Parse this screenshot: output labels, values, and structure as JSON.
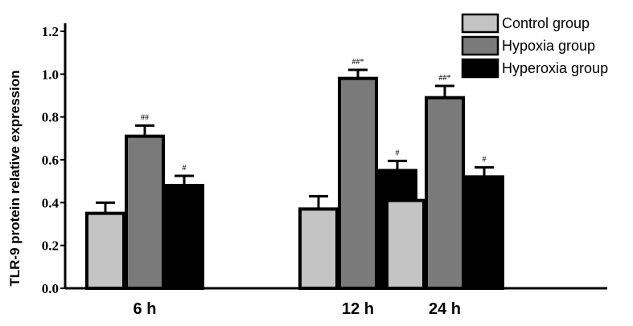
{
  "chart_data": {
    "type": "bar",
    "title": "",
    "xlabel": "",
    "ylabel": "TLR-9 protein relative expression",
    "categories": [
      "6 h",
      "12 h",
      "24 h"
    ],
    "ylim": [
      0,
      1.2
    ],
    "yticks": [
      "0.0",
      "0.2",
      "0.4",
      "0.6",
      "0.8",
      "1.0",
      "1.2"
    ],
    "grid": false,
    "legend_position": "top-right",
    "series": [
      {
        "name": "Control group",
        "color": "#c4c4c4",
        "values": [
          0.35,
          0.37,
          0.41
        ],
        "errors": [
          0.05,
          0.06,
          0.045
        ],
        "annotations": [
          "",
          "",
          ""
        ]
      },
      {
        "name": "Hypoxia group",
        "color": "#7a7a7a",
        "values": [
          0.71,
          0.98,
          0.89
        ],
        "errors": [
          0.05,
          0.04,
          0.055
        ],
        "annotations": [
          "##",
          "##*",
          "##*"
        ]
      },
      {
        "name": "Hyperoxia group",
        "color": "#000000",
        "values": [
          0.48,
          0.55,
          0.52
        ],
        "errors": [
          0.045,
          0.045,
          0.045
        ],
        "annotations": [
          "#",
          "#",
          "#"
        ]
      }
    ]
  }
}
